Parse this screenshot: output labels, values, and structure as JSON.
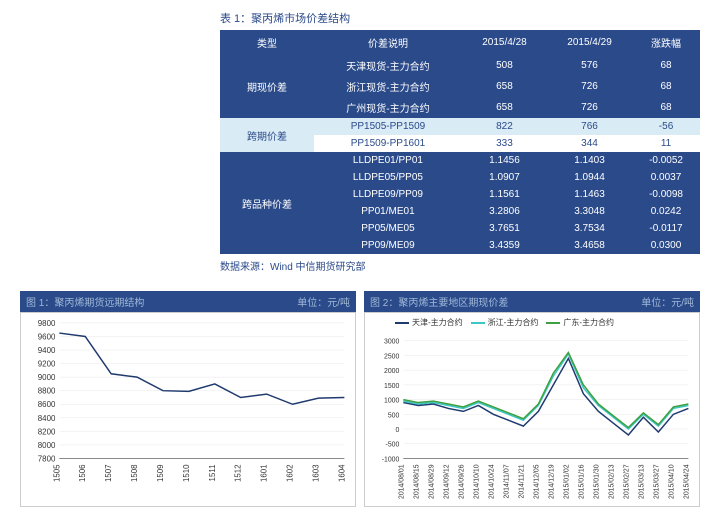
{
  "table": {
    "title": "表 1：聚丙烯市场价差结构",
    "headers": [
      "类型",
      "价差说明",
      "2015/4/28",
      "2015/4/29",
      "涨跌幅"
    ],
    "groups": [
      {
        "category": "期现价差",
        "style": "dark",
        "rows": [
          [
            "天津现货-主力合约",
            "508",
            "576",
            "68"
          ],
          [
            "浙江现货-主力合约",
            "658",
            "726",
            "68"
          ],
          [
            "广州现货-主力合约",
            "658",
            "726",
            "68"
          ]
        ]
      },
      {
        "category": "跨期价差",
        "style": "light",
        "rows": [
          [
            "PP1505-PP1509",
            "822",
            "766",
            "-56"
          ],
          [
            "PP1509-PP1601",
            "333",
            "344",
            "11"
          ]
        ]
      },
      {
        "category": "跨品种价差",
        "style": "dark",
        "rows": [
          [
            "LLDPE01/PP01",
            "1.1456",
            "1.1403",
            "-0.0052"
          ],
          [
            "LLDPE05/PP05",
            "1.0907",
            "1.0944",
            "0.0037"
          ],
          [
            "LLDPE09/PP09",
            "1.1561",
            "1.1463",
            "-0.0098"
          ],
          [
            "PP01/ME01",
            "3.2806",
            "3.3048",
            "0.0242"
          ],
          [
            "PP05/ME05",
            "3.7651",
            "3.7534",
            "-0.0117"
          ],
          [
            "PP09/ME09",
            "3.4359",
            "3.4658",
            "0.0300"
          ]
        ]
      }
    ],
    "source": "数据来源：Wind 中信期货研究部"
  },
  "chart1": {
    "title": "图 1：聚丙烯期货远期结构",
    "unit": "单位：元/吨",
    "type": "line",
    "x_labels": [
      "1505",
      "1506",
      "1507",
      "1508",
      "1509",
      "1510",
      "1511",
      "1512",
      "1601",
      "1602",
      "1603",
      "1604"
    ],
    "ylim": [
      7800,
      9800
    ],
    "ytick_step": 200,
    "series": [
      {
        "color": "#1f3a6e",
        "values": [
          9650,
          9600,
          9050,
          9000,
          8800,
          8790,
          8900,
          8700,
          8750,
          8600,
          8690,
          8700
        ]
      }
    ],
    "grid_color": "#e8e8e8",
    "background_color": "#ffffff",
    "axis_fontsize": 8
  },
  "chart2": {
    "title": "图 2：聚丙烯主要地区期现价差",
    "unit": "单位：元/吨",
    "type": "line",
    "x_labels": [
      "2014/08/01",
      "2014/08/15",
      "2014/08/29",
      "2014/09/12",
      "2014/09/26",
      "2014/10/10",
      "2014/10/24",
      "2014/11/07",
      "2014/11/21",
      "2014/12/05",
      "2014/12/19",
      "2015/01/02",
      "2015/01/16",
      "2015/01/30",
      "2015/02/13",
      "2015/02/27",
      "2015/03/13",
      "2015/03/27",
      "2015/04/10",
      "2015/04/24"
    ],
    "ylim": [
      -1000,
      3000
    ],
    "ytick_step": 500,
    "legend_items": [
      {
        "label": "天津-主力合约",
        "color": "#1f3a6e"
      },
      {
        "label": "浙江-主力合约",
        "color": "#3cc7c7"
      },
      {
        "label": "广东-主力合约",
        "color": "#3ea03e"
      }
    ],
    "series": [
      {
        "color": "#1f3a6e",
        "values": [
          900,
          800,
          850,
          700,
          600,
          800,
          500,
          300,
          100,
          600,
          1500,
          2400,
          1200,
          600,
          200,
          -200,
          400,
          -100,
          500,
          700
        ]
      },
      {
        "color": "#3cc7c7",
        "values": [
          950,
          850,
          900,
          800,
          700,
          900,
          700,
          500,
          300,
          800,
          1800,
          2550,
          1400,
          800,
          400,
          0,
          500,
          100,
          700,
          800
        ]
      },
      {
        "color": "#3ea03e",
        "values": [
          1000,
          900,
          950,
          850,
          750,
          950,
          750,
          550,
          350,
          850,
          1900,
          2600,
          1500,
          850,
          450,
          50,
          550,
          150,
          750,
          850
        ]
      }
    ],
    "grid_color": "#e8e8e8",
    "background_color": "#ffffff",
    "axis_fontsize": 7
  }
}
